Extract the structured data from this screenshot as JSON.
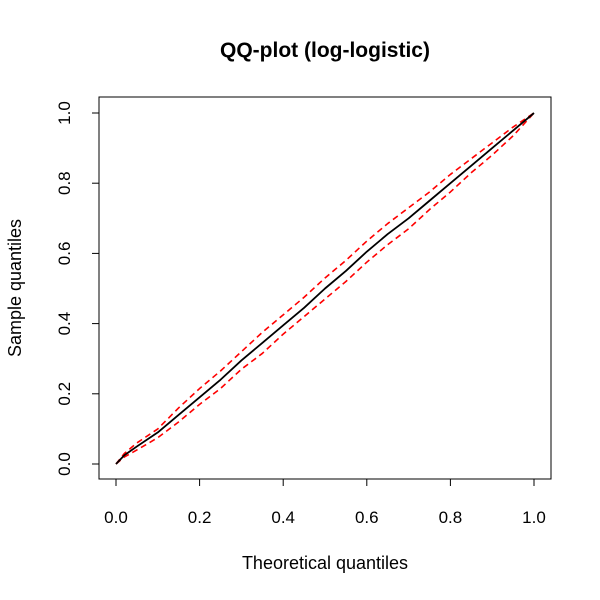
{
  "chart_data": {
    "type": "line",
    "title": "QQ-plot (log-logistic)",
    "xlabel": "Theoretical quantiles",
    "ylabel": "Sample quantiles",
    "xlim": [
      0,
      1
    ],
    "ylim": [
      0,
      1
    ],
    "xticks": [
      "0.0",
      "0.2",
      "0.4",
      "0.6",
      "0.8",
      "1.0"
    ],
    "yticks": [
      "0.0",
      "0.2",
      "0.4",
      "0.6",
      "0.8",
      "1.0"
    ],
    "grid": false,
    "legend": "none",
    "series": [
      {
        "role": "qq-line",
        "color": "#000000",
        "style": "solid",
        "x": [
          0,
          0.02,
          0.05,
          0.1,
          0.15,
          0.2,
          0.25,
          0.3,
          0.35,
          0.4,
          0.45,
          0.5,
          0.55,
          0.6,
          0.65,
          0.7,
          0.75,
          0.8,
          0.85,
          0.9,
          0.95,
          1.0
        ],
        "y": [
          0,
          0.025,
          0.05,
          0.09,
          0.14,
          0.19,
          0.24,
          0.295,
          0.345,
          0.395,
          0.445,
          0.5,
          0.55,
          0.605,
          0.655,
          0.7,
          0.75,
          0.8,
          0.85,
          0.9,
          0.95,
          1.0
        ]
      },
      {
        "role": "upper-band",
        "color": "#ff0000",
        "style": "dashed",
        "x": [
          0,
          0.02,
          0.05,
          0.1,
          0.15,
          0.2,
          0.25,
          0.3,
          0.35,
          0.4,
          0.45,
          0.5,
          0.55,
          0.6,
          0.65,
          0.7,
          0.75,
          0.8,
          0.85,
          0.9,
          0.95,
          1.0
        ],
        "y": [
          0,
          0.03,
          0.06,
          0.1,
          0.16,
          0.215,
          0.265,
          0.32,
          0.375,
          0.425,
          0.475,
          0.53,
          0.58,
          0.635,
          0.685,
          0.73,
          0.775,
          0.825,
          0.87,
          0.915,
          0.96,
          1.0
        ]
      },
      {
        "role": "lower-band",
        "color": "#ff0000",
        "style": "dashed",
        "x": [
          0,
          0.02,
          0.05,
          0.1,
          0.15,
          0.2,
          0.25,
          0.3,
          0.35,
          0.4,
          0.45,
          0.5,
          0.55,
          0.6,
          0.65,
          0.7,
          0.75,
          0.8,
          0.85,
          0.9,
          0.95,
          1.0
        ],
        "y": [
          0,
          0.02,
          0.04,
          0.075,
          0.12,
          0.17,
          0.215,
          0.27,
          0.315,
          0.37,
          0.42,
          0.47,
          0.52,
          0.575,
          0.625,
          0.67,
          0.725,
          0.775,
          0.83,
          0.88,
          0.935,
          1.0
        ]
      }
    ]
  }
}
